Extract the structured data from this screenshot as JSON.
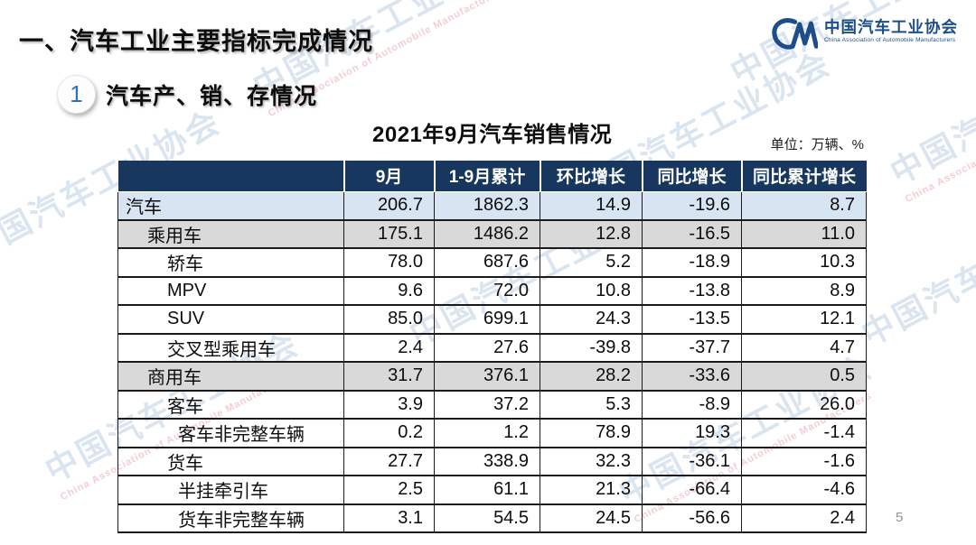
{
  "slide": {
    "title": "一、汽车工业主要指标完成情况",
    "page_number": "5"
  },
  "logo": {
    "icon": "caam-cm-logo",
    "name_cn": "中国汽车工业协会",
    "name_en": "China Association of Automobile Manufacturers"
  },
  "section": {
    "badge_number": "1",
    "title": "汽车产、销、存情况"
  },
  "table": {
    "title": "2021年9月汽车销售情况",
    "unit_note": "单位：万辆、%",
    "headers": [
      "",
      "9月",
      "1-9月累计",
      "环比增长",
      "同比增长",
      "同比累计增长"
    ],
    "rows": [
      {
        "label": "汽车",
        "indent": 0,
        "highlight": "blue",
        "values": [
          "206.7",
          "1862.3",
          "14.9",
          "-19.6",
          "8.7"
        ]
      },
      {
        "label": "乘用车",
        "indent": 1,
        "highlight": "gray",
        "values": [
          "175.1",
          "1486.2",
          "12.8",
          "-16.5",
          "11.0"
        ]
      },
      {
        "label": "轿车",
        "indent": 2,
        "highlight": "none",
        "values": [
          "78.0",
          "687.6",
          "5.2",
          "-18.9",
          "10.3"
        ]
      },
      {
        "label": "MPV",
        "indent": 2,
        "highlight": "none",
        "values": [
          "9.6",
          "72.0",
          "10.8",
          "-13.8",
          "8.9"
        ]
      },
      {
        "label": "SUV",
        "indent": 2,
        "highlight": "none",
        "values": [
          "85.0",
          "699.1",
          "24.3",
          "-13.5",
          "12.1"
        ]
      },
      {
        "label": "交叉型乘用车",
        "indent": 2,
        "highlight": "none",
        "values": [
          "2.4",
          "27.6",
          "-39.8",
          "-37.7",
          "4.7"
        ]
      },
      {
        "label": "商用车",
        "indent": 1,
        "highlight": "gray",
        "values": [
          "31.7",
          "376.1",
          "28.2",
          "-33.6",
          "0.5"
        ]
      },
      {
        "label": "客车",
        "indent": 2,
        "highlight": "none",
        "values": [
          "3.9",
          "37.2",
          "5.3",
          "-8.9",
          "26.0"
        ]
      },
      {
        "label": "客车非完整车辆",
        "indent": 3,
        "highlight": "none",
        "values": [
          "0.2",
          "1.2",
          "78.9",
          "19.3",
          "-1.4"
        ]
      },
      {
        "label": "货车",
        "indent": 2,
        "highlight": "none",
        "values": [
          "27.7",
          "338.9",
          "32.3",
          "-36.1",
          "-1.6"
        ]
      },
      {
        "label": "半挂牵引车",
        "indent": 3,
        "highlight": "none",
        "values": [
          "2.5",
          "61.1",
          "21.3",
          "-66.4",
          "-4.6"
        ]
      },
      {
        "label": "货车非完整车辆",
        "indent": 3,
        "highlight": "none",
        "values": [
          "3.1",
          "54.5",
          "24.5",
          "-56.6",
          "2.4"
        ]
      }
    ]
  },
  "watermark": {
    "text_cn": "中国汽车工业协会",
    "text_en": "China Association of Automobile Manufacturers"
  },
  "colors": {
    "header_bg": "#17375e",
    "row_blue": "#d7e4f1",
    "row_gray": "#d9d9d9",
    "logo_blue": "#1d4e89",
    "badge_number_blue": "#2e74b5"
  }
}
